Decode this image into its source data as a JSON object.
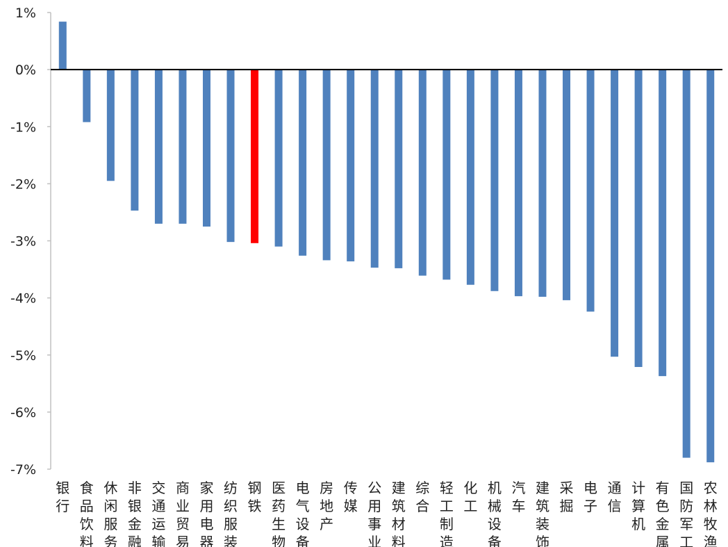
{
  "chart_data": {
    "type": "bar",
    "title": "",
    "xlabel": "",
    "ylabel": "",
    "ylim": [
      -7,
      1
    ],
    "yticks": [
      "1%",
      "0%",
      "-1%",
      "-2%",
      "-3%",
      "-4%",
      "-5%",
      "-6%",
      "-7%"
    ],
    "grid": false,
    "legend": "none",
    "colors": {
      "default": "#4f81bd",
      "highlight": "#ff0000",
      "axis": "#000000"
    },
    "highlight_category": "钢铁",
    "categories": [
      "银行",
      "食品饮料",
      "休闲服务",
      "非银金融",
      "交通运输",
      "商业贸易",
      "家用电器",
      "纺织服装",
      "钢铁",
      "医药生物",
      "电气设备",
      "房地产",
      "传媒",
      "公用事业",
      "建筑材料",
      "综合",
      "轻工制造",
      "化工",
      "机械设备",
      "汽车",
      "建筑装饰",
      "采掘",
      "电子",
      "通信",
      "计算机",
      "有色金属",
      "国防军工",
      "农林牧渔"
    ],
    "values": [
      0.84,
      -0.92,
      -1.95,
      -2.47,
      -2.7,
      -2.7,
      -2.75,
      -3.02,
      -3.04,
      -3.1,
      -3.26,
      -3.34,
      -3.36,
      -3.47,
      -3.48,
      -3.61,
      -3.68,
      -3.77,
      -3.88,
      -3.97,
      -3.98,
      -4.04,
      -4.24,
      -5.03,
      -5.21,
      -5.37,
      -6.8,
      -6.88
    ]
  }
}
